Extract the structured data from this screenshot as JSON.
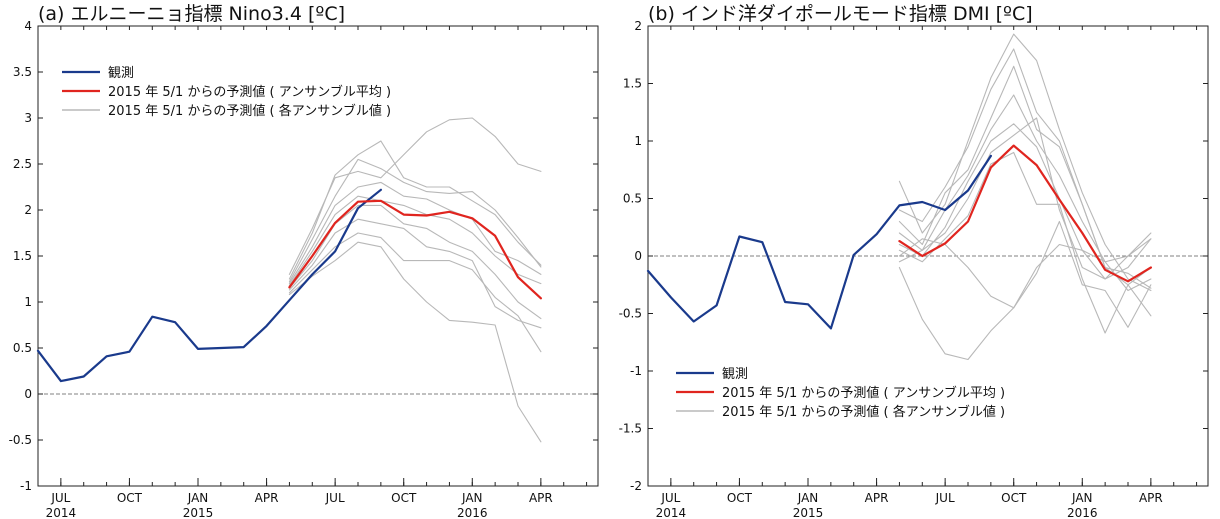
{
  "colors": {
    "observed": "#1a3a8c",
    "ensemble_mean": "#e0251f",
    "members": "#b8b8b8",
    "axis": "#222222",
    "zero_line": "#808080"
  },
  "chart_data": [
    {
      "type": "line",
      "title": "(a) エルニーニョ指標 Nino3.4 [ºC]",
      "xlabel": "",
      "ylabel": "",
      "x_range": [
        0,
        24.5
      ],
      "x_ticks": [
        {
          "x": 1,
          "month": "JUL",
          "year": "2014"
        },
        {
          "x": 4,
          "month": "OCT",
          "year": ""
        },
        {
          "x": 7,
          "month": "JAN",
          "year": "2015"
        },
        {
          "x": 10,
          "month": "APR",
          "year": ""
        },
        {
          "x": 13,
          "month": "JUL",
          "year": ""
        },
        {
          "x": 16,
          "month": "OCT",
          "year": ""
        },
        {
          "x": 19,
          "month": "JAN",
          "year": "2016"
        },
        {
          "x": 22,
          "month": "APR",
          "year": ""
        }
      ],
      "ylim": [
        -1,
        4
      ],
      "y_ticks": [
        "-1",
        "-0.5",
        "0",
        "0.5",
        "1",
        "1.5",
        "2",
        "2.5",
        "3",
        "3.5",
        "4"
      ],
      "zero_line": 0,
      "grid": false,
      "legend_position": "top-left",
      "legend": {
        "observed": "観測",
        "ensemble_mean": "2015 年 5/1 からの予測値 ( アンサンブル平均 )",
        "members": "2015 年 5/1 からの予測値 ( 各アンサンブル値 )"
      },
      "observed": {
        "x": [
          0,
          1,
          2,
          3,
          4,
          5,
          6,
          7,
          8,
          9,
          10,
          11,
          12,
          13,
          14,
          15
        ],
        "y": [
          0.47,
          0.14,
          0.19,
          0.41,
          0.46,
          0.84,
          0.78,
          0.49,
          0.5,
          0.51,
          0.74,
          1.02,
          1.3,
          1.55,
          2.02,
          2.22
        ]
      },
      "ensemble_mean": {
        "x": [
          11,
          12,
          13,
          14,
          15,
          16,
          17,
          18,
          19,
          20,
          21,
          22
        ],
        "y": [
          1.16,
          1.5,
          1.86,
          2.09,
          2.1,
          1.95,
          1.94,
          1.98,
          1.91,
          1.72,
          1.27,
          1.04
        ]
      },
      "members": [
        {
          "x": [
            11,
            12,
            13,
            14,
            15,
            16,
            17,
            18,
            19,
            20,
            21,
            22
          ],
          "y": [
            1.3,
            1.8,
            2.35,
            2.42,
            2.35,
            2.6,
            2.85,
            2.98,
            3.0,
            2.8,
            2.5,
            2.42
          ]
        },
        {
          "x": [
            11,
            12,
            13,
            14,
            15,
            16,
            17,
            18,
            19,
            20,
            21,
            22
          ],
          "y": [
            1.25,
            1.75,
            2.38,
            2.6,
            2.75,
            2.35,
            2.25,
            2.25,
            2.1,
            1.95,
            1.65,
            1.4
          ]
        },
        {
          "x": [
            11,
            12,
            13,
            14,
            15,
            16,
            17,
            18,
            19,
            20,
            21,
            22
          ],
          "y": [
            1.22,
            1.68,
            2.15,
            2.55,
            2.45,
            2.3,
            2.2,
            2.18,
            2.2,
            2.0,
            1.7,
            1.38
          ]
        },
        {
          "x": [
            11,
            12,
            13,
            14,
            15,
            16,
            17,
            18,
            19,
            20,
            21,
            22
          ],
          "y": [
            1.2,
            1.6,
            2.05,
            2.25,
            2.3,
            2.15,
            2.12,
            2.0,
            1.9,
            1.55,
            1.45,
            1.3
          ]
        },
        {
          "x": [
            11,
            12,
            13,
            14,
            15,
            16,
            17,
            18,
            19,
            20,
            21,
            22
          ],
          "y": [
            1.18,
            1.55,
            1.95,
            2.15,
            2.1,
            2.05,
            1.95,
            1.9,
            1.75,
            1.5,
            1.3,
            1.2
          ]
        },
        {
          "x": [
            11,
            12,
            13,
            14,
            15,
            16,
            17,
            18,
            19,
            20,
            21,
            22
          ],
          "y": [
            1.15,
            1.45,
            1.85,
            2.05,
            2.05,
            1.85,
            1.8,
            1.65,
            1.55,
            1.3,
            1.0,
            0.82
          ]
        },
        {
          "x": [
            11,
            12,
            13,
            14,
            15,
            16,
            17,
            18,
            19,
            20,
            21,
            22
          ],
          "y": [
            1.13,
            1.4,
            1.75,
            1.9,
            1.85,
            1.8,
            1.6,
            1.55,
            1.45,
            0.95,
            0.8,
            0.72
          ]
        },
        {
          "x": [
            11,
            12,
            13,
            14,
            15,
            16,
            17,
            18,
            19,
            20,
            21,
            22
          ],
          "y": [
            1.1,
            1.35,
            1.6,
            1.75,
            1.7,
            1.45,
            1.45,
            1.45,
            1.35,
            1.05,
            0.85,
            0.46
          ]
        },
        {
          "x": [
            11,
            12,
            13,
            14,
            15,
            16,
            17,
            18,
            19,
            20,
            21,
            22
          ],
          "y": [
            1.08,
            1.28,
            1.45,
            1.65,
            1.6,
            1.25,
            1.0,
            0.8,
            0.78,
            0.75,
            -0.13,
            -0.52
          ]
        }
      ]
    },
    {
      "type": "line",
      "title": "(b) インド洋ダイポールモード指標 DMI [ºC]",
      "xlabel": "",
      "ylabel": "",
      "x_range": [
        0,
        24.5
      ],
      "x_ticks": [
        {
          "x": 1,
          "month": "JUL",
          "year": "2014"
        },
        {
          "x": 4,
          "month": "OCT",
          "year": ""
        },
        {
          "x": 7,
          "month": "JAN",
          "year": "2015"
        },
        {
          "x": 10,
          "month": "APR",
          "year": ""
        },
        {
          "x": 13,
          "month": "JUL",
          "year": ""
        },
        {
          "x": 16,
          "month": "OCT",
          "year": ""
        },
        {
          "x": 19,
          "month": "JAN",
          "year": "2016"
        },
        {
          "x": 22,
          "month": "APR",
          "year": ""
        }
      ],
      "ylim": [
        -2,
        2
      ],
      "y_ticks": [
        "-2",
        "-1.5",
        "-1",
        "-0.5",
        "0",
        "0.5",
        "1",
        "1.5",
        "2"
      ],
      "zero_line": 0,
      "grid": false,
      "legend_position": "bottom-left",
      "legend": {
        "observed": "観測",
        "ensemble_mean": "2015 年 5/1 からの予測値 ( アンサンブル平均 )",
        "members": "2015 年 5/1 からの予測値 ( 各アンサンブル値 )"
      },
      "observed": {
        "x": [
          0,
          1,
          2,
          3,
          4,
          5,
          6,
          7,
          8,
          9,
          10,
          11,
          12,
          13,
          14,
          15
        ],
        "y": [
          -0.13,
          -0.36,
          -0.57,
          -0.43,
          0.17,
          0.12,
          -0.4,
          -0.42,
          -0.63,
          0.01,
          0.19,
          0.44,
          0.47,
          0.4,
          0.57,
          0.87
        ]
      },
      "ensemble_mean": {
        "x": [
          11,
          12,
          13,
          14,
          15,
          16,
          17,
          18,
          19,
          20,
          21,
          22
        ],
        "y": [
          0.13,
          0.0,
          0.11,
          0.3,
          0.77,
          0.96,
          0.79,
          0.49,
          0.2,
          -0.12,
          -0.22,
          -0.1
        ]
      },
      "members": [
        {
          "x": [
            11,
            12,
            13,
            14,
            15,
            16,
            17,
            18,
            19,
            20,
            21,
            22
          ],
          "y": [
            0.65,
            0.2,
            0.45,
            1.0,
            1.55,
            1.93,
            1.7,
            1.1,
            0.55,
            0.1,
            -0.2,
            -0.3
          ]
        },
        {
          "x": [
            11,
            12,
            13,
            14,
            15,
            16,
            17,
            18,
            19,
            20,
            21,
            22
          ],
          "y": [
            0.4,
            0.3,
            0.6,
            0.95,
            1.45,
            1.8,
            1.25,
            1.0,
            0.45,
            -0.1,
            -0.15,
            -0.28
          ]
        },
        {
          "x": [
            11,
            12,
            13,
            14,
            15,
            16,
            17,
            18,
            19,
            20,
            21,
            22
          ],
          "y": [
            0.3,
            0.1,
            0.55,
            0.75,
            1.2,
            1.65,
            1.1,
            0.95,
            0.45,
            -0.1,
            -0.25,
            -0.52
          ]
        },
        {
          "x": [
            11,
            12,
            13,
            14,
            15,
            16,
            17,
            18,
            19,
            20,
            21,
            22
          ],
          "y": [
            0.2,
            0.05,
            0.4,
            0.7,
            1.1,
            1.4,
            1.0,
            0.7,
            0.3,
            -0.05,
            0.0,
            0.2
          ]
        },
        {
          "x": [
            11,
            12,
            13,
            14,
            15,
            16,
            17,
            18,
            19,
            20,
            21,
            22
          ],
          "y": [
            0.1,
            0.0,
            0.25,
            0.65,
            1.0,
            1.15,
            0.95,
            0.5,
            0.05,
            -0.2,
            0.0,
            0.15
          ]
        },
        {
          "x": [
            11,
            12,
            13,
            14,
            15,
            16,
            17,
            18,
            19,
            20,
            21,
            22
          ],
          "y": [
            -0.05,
            0.05,
            0.2,
            0.5,
            0.9,
            1.05,
            1.2,
            0.4,
            -0.1,
            -0.2,
            -0.1,
            0.15
          ]
        },
        {
          "x": [
            11,
            12,
            13,
            14,
            15,
            16,
            17,
            18,
            19,
            20,
            21,
            22
          ],
          "y": [
            0.05,
            -0.05,
            0.15,
            0.35,
            0.8,
            0.9,
            0.45,
            0.45,
            -0.2,
            -0.67,
            -0.25,
            -0.1
          ]
        },
        {
          "x": [
            11,
            12,
            13,
            14,
            15,
            16,
            17,
            18,
            19,
            20,
            21,
            22
          ],
          "y": [
            -0.1,
            -0.55,
            -0.85,
            -0.9,
            -0.65,
            -0.45,
            -0.15,
            0.3,
            -0.25,
            -0.3,
            -0.62,
            -0.25
          ]
        },
        {
          "x": [
            11,
            12,
            13,
            14,
            15,
            16,
            17,
            18,
            19,
            20,
            21,
            22
          ],
          "y": [
            0.0,
            0.15,
            0.1,
            -0.1,
            -0.35,
            -0.45,
            -0.1,
            0.1,
            0.05,
            -0.05,
            -0.3,
            -0.2
          ]
        }
      ]
    }
  ]
}
